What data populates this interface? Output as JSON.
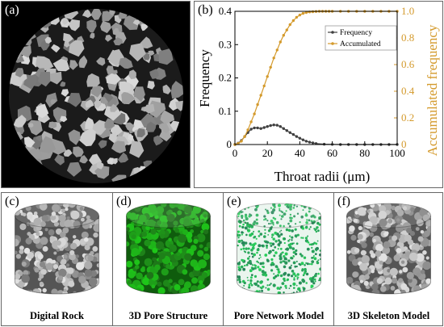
{
  "panels": {
    "a": {
      "letter": "(a)"
    },
    "b": {
      "letter": "(b)"
    },
    "c": {
      "letter": "(c)",
      "caption": "Digital Rock",
      "color": "#8f8f8f"
    },
    "d": {
      "letter": "(d)",
      "caption": "3D Pore Structure",
      "color": "#1f8a1a"
    },
    "e": {
      "letter": "(e)",
      "caption": "Pore Network Model",
      "color": "#5fb38a"
    },
    "f": {
      "letter": "(f)",
      "caption": "3D Skeleton Model",
      "color": "#8a8a8a"
    }
  },
  "chart_data": {
    "type": "line",
    "xlabel": "Throat radii (μm)",
    "ylabel": "Frequency",
    "y2label": "Accumulated frequency",
    "xlim": [
      0,
      100
    ],
    "ylim": [
      0,
      0.4
    ],
    "y2lim": [
      0,
      1.0
    ],
    "x_ticks": [
      0,
      20,
      40,
      60,
      80,
      100
    ],
    "y_ticks": [
      "0",
      "0.1",
      "0.2",
      "0.3",
      "0.4"
    ],
    "y2_ticks": [
      "0",
      "0.2",
      "0.4",
      "0.6",
      "0.8",
      "1.0"
    ],
    "legend": "top-right",
    "colors": {
      "frequency": "#404040",
      "accumulated": "#d49a2c",
      "y2axis": "#d49a2c"
    },
    "series": [
      {
        "name": "Frequency",
        "axis": "left",
        "x": [
          0,
          2,
          4,
          6,
          8,
          10,
          12,
          14,
          16,
          18,
          20,
          22,
          24,
          26,
          28,
          30,
          32,
          34,
          36,
          38,
          40,
          42,
          44,
          46,
          48,
          50,
          55,
          60,
          65,
          70,
          75,
          80,
          85,
          90,
          95,
          100
        ],
        "y": [
          0,
          0.004,
          0.012,
          0.024,
          0.036,
          0.046,
          0.05,
          0.05,
          0.048,
          0.051,
          0.054,
          0.057,
          0.059,
          0.058,
          0.054,
          0.048,
          0.042,
          0.036,
          0.03,
          0.024,
          0.019,
          0.014,
          0.01,
          0.007,
          0.005,
          0.003,
          0.001,
          0.0005,
          0,
          0,
          0,
          0,
          0,
          0,
          0,
          0
        ]
      },
      {
        "name": "Accumulated",
        "axis": "right",
        "x": [
          0,
          2,
          4,
          6,
          8,
          10,
          12,
          14,
          16,
          18,
          20,
          22,
          24,
          26,
          28,
          30,
          32,
          34,
          36,
          38,
          40,
          42,
          44,
          46,
          48,
          50,
          52,
          54,
          56,
          58,
          60,
          65,
          70,
          75,
          80,
          85,
          90,
          95,
          100
        ],
        "y": [
          0,
          0.008,
          0.025,
          0.06,
          0.11,
          0.17,
          0.23,
          0.3,
          0.37,
          0.44,
          0.51,
          0.58,
          0.65,
          0.71,
          0.77,
          0.82,
          0.86,
          0.9,
          0.93,
          0.955,
          0.972,
          0.984,
          0.991,
          0.995,
          0.997,
          0.999,
          1.0,
          1.0,
          1.0,
          1.0,
          1.0,
          1.0,
          1.0,
          1.0,
          1.0,
          1.0,
          1.0,
          1.0,
          1.0
        ]
      }
    ]
  }
}
